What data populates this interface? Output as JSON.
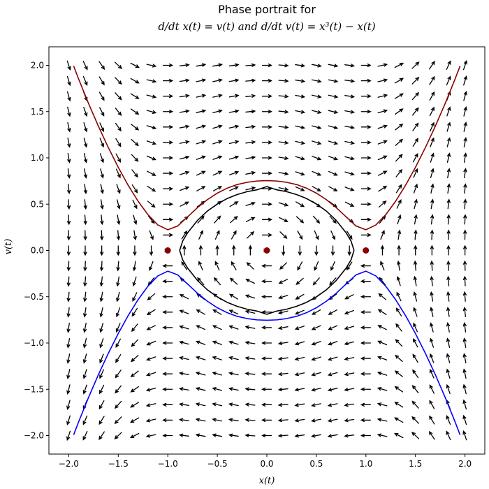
{
  "chart_data": {
    "type": "line",
    "title_line1": "Phase portrait for",
    "title_line2": "d/dt x(t) = v(t) and d/dt v(t) = x³(t) − x(t)",
    "xlabel": "x(t)",
    "ylabel": "v(t)",
    "xlim": [
      -2.2,
      2.2
    ],
    "ylim": [
      -2.2,
      2.2
    ],
    "x_ticks": [
      -2.0,
      -1.5,
      -1.0,
      -0.5,
      0.0,
      0.5,
      1.0,
      1.5,
      2.0
    ],
    "y_ticks": [
      -2.0,
      -1.5,
      -1.0,
      -0.5,
      0.0,
      0.5,
      1.0,
      1.5,
      2.0
    ],
    "x_tick_labels": [
      "−2.0",
      "−1.5",
      "−1.0",
      "−0.5",
      "0.0",
      "0.5",
      "1.0",
      "1.5",
      "2.0"
    ],
    "y_tick_labels": [
      "−2.0",
      "−1.5",
      "−1.0",
      "−0.5",
      "0.0",
      "0.5",
      "1.0",
      "1.5",
      "2.0"
    ],
    "grid": false,
    "vector_field": {
      "x_range": [
        -2.0,
        2.0
      ],
      "y_range": [
        -2.0,
        2.0
      ],
      "n": 25,
      "color": "#000000"
    },
    "equilibria": {
      "x": [
        -1.0,
        0.0,
        1.0
      ],
      "y": [
        0.0,
        0.0,
        0.0
      ],
      "color": "#8b0000"
    },
    "series": [
      {
        "color": "#8b0000",
        "x": [
          -1.95,
          -1.9,
          -1.8,
          -1.7,
          -1.6,
          -1.5,
          -1.4,
          -1.3,
          -1.2,
          -1.1,
          -1.0,
          -0.9,
          -0.8,
          -0.7,
          -0.6,
          -0.5,
          -0.4,
          -0.3,
          -0.2,
          -0.1,
          0.0,
          0.1,
          0.2,
          0.3,
          0.4,
          0.5,
          0.6,
          0.7,
          0.8,
          0.9,
          1.0,
          1.1,
          1.2,
          1.3,
          1.4,
          1.5,
          1.6,
          1.7,
          1.8,
          1.9,
          1.95
        ],
        "y": [
          1.992,
          1.852,
          1.588,
          1.341,
          1.111,
          0.898,
          0.704,
          0.532,
          0.386,
          0.275,
          0.224,
          0.264,
          0.363,
          0.463,
          0.549,
          0.619,
          0.673,
          0.712,
          0.736,
          0.75,
          0.754,
          0.75,
          0.736,
          0.712,
          0.673,
          0.619,
          0.549,
          0.463,
          0.363,
          0.264,
          0.224,
          0.275,
          0.386,
          0.532,
          0.704,
          0.898,
          1.111,
          1.341,
          1.588,
          1.852,
          1.992
        ]
      },
      {
        "color": "#0000ff",
        "x": [
          -1.95,
          -1.9,
          -1.8,
          -1.7,
          -1.6,
          -1.5,
          -1.4,
          -1.3,
          -1.2,
          -1.1,
          -1.0,
          -0.9,
          -0.8,
          -0.7,
          -0.6,
          -0.5,
          -0.4,
          -0.3,
          -0.2,
          -0.1,
          0.0,
          0.1,
          0.2,
          0.3,
          0.4,
          0.5,
          0.6,
          0.7,
          0.8,
          0.9,
          1.0,
          1.1,
          1.2,
          1.3,
          1.4,
          1.5,
          1.6,
          1.7,
          1.8,
          1.9,
          1.95
        ],
        "y": [
          -1.992,
          -1.852,
          -1.588,
          -1.341,
          -1.111,
          -0.898,
          -0.704,
          -0.532,
          -0.386,
          -0.275,
          -0.224,
          -0.264,
          -0.363,
          -0.463,
          -0.549,
          -0.619,
          -0.673,
          -0.712,
          -0.736,
          -0.75,
          -0.754,
          -0.75,
          -0.736,
          -0.712,
          -0.673,
          -0.619,
          -0.549,
          -0.463,
          -0.363,
          -0.264,
          -0.224,
          -0.275,
          -0.386,
          -0.532,
          -0.704,
          -0.898,
          -1.111,
          -1.341,
          -1.588,
          -1.852,
          -1.992
        ]
      },
      {
        "color": "#000000",
        "x": [
          0.88,
          0.85,
          0.8,
          0.7,
          0.6,
          0.5,
          0.4,
          0.3,
          0.2,
          0.1,
          0.0,
          -0.1,
          -0.2,
          -0.3,
          -0.4,
          -0.5,
          -0.6,
          -0.7,
          -0.8,
          -0.85,
          -0.88,
          -0.85,
          -0.8,
          -0.7,
          -0.6,
          -0.5,
          -0.4,
          -0.3,
          -0.2,
          -0.1,
          0.0,
          0.1,
          0.2,
          0.3,
          0.4,
          0.5,
          0.6,
          0.7,
          0.8,
          0.85,
          0.88
        ],
        "y": [
          0.0,
          0.101,
          0.191,
          0.325,
          0.426,
          0.502,
          0.561,
          0.604,
          0.635,
          0.655,
          0.69,
          0.655,
          0.635,
          0.604,
          0.561,
          0.502,
          0.426,
          0.325,
          0.191,
          0.101,
          0.0,
          -0.101,
          -0.191,
          -0.325,
          -0.426,
          -0.502,
          -0.561,
          -0.604,
          -0.635,
          -0.655,
          -0.69,
          -0.655,
          -0.635,
          -0.604,
          -0.561,
          -0.502,
          -0.426,
          -0.325,
          -0.191,
          -0.101,
          0.0
        ]
      }
    ]
  }
}
